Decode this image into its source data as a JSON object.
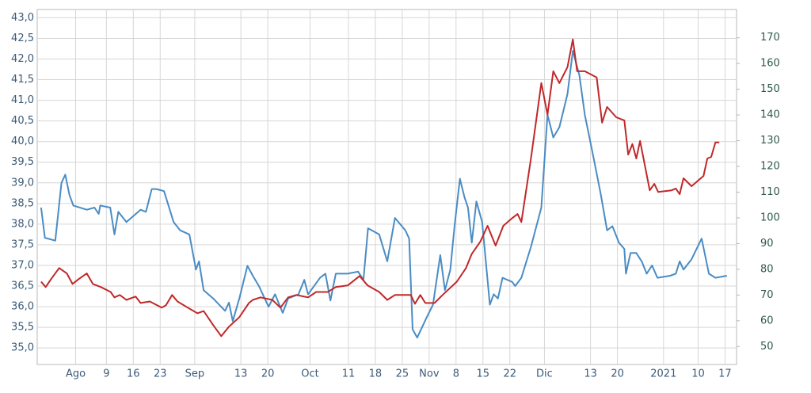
{
  "chart_data": {
    "type": "line",
    "xlim": [
      -10,
      172
    ],
    "xticks": [
      {
        "value": 0,
        "label": "Ago"
      },
      {
        "value": 8,
        "label": "9"
      },
      {
        "value": 15,
        "label": "16"
      },
      {
        "value": 22,
        "label": "23"
      },
      {
        "value": 31,
        "label": "Sep"
      },
      {
        "value": 43,
        "label": "13"
      },
      {
        "value": 50,
        "label": "20"
      },
      {
        "value": 61,
        "label": "Oct"
      },
      {
        "value": 71,
        "label": "11"
      },
      {
        "value": 78,
        "label": "18"
      },
      {
        "value": 85,
        "label": "25"
      },
      {
        "value": 92,
        "label": "Nov"
      },
      {
        "value": 99,
        "label": "8"
      },
      {
        "value": 106,
        "label": "15"
      },
      {
        "value": 113,
        "label": "22"
      },
      {
        "value": 122,
        "label": "Dic"
      },
      {
        "value": 134,
        "label": "13"
      },
      {
        "value": 141,
        "label": "20"
      },
      {
        "value": 153,
        "label": "2021"
      },
      {
        "value": 162,
        "label": "10"
      },
      {
        "value": 169,
        "label": "17"
      }
    ],
    "ylim": [
      34.6,
      43.2
    ],
    "yticks": [
      {
        "value": 35,
        "label": "35,0"
      },
      {
        "value": 35.5,
        "label": "35,5"
      },
      {
        "value": 36,
        "label": "36,0"
      },
      {
        "value": 36.5,
        "label": "36,5"
      },
      {
        "value": 37,
        "label": "37,0"
      },
      {
        "value": 37.5,
        "label": "37,5"
      },
      {
        "value": 38,
        "label": "38,0"
      },
      {
        "value": 38.5,
        "label": "38,5"
      },
      {
        "value": 39,
        "label": "39,0"
      },
      {
        "value": 39.5,
        "label": "39,5"
      },
      {
        "value": 40,
        "label": "40,0"
      },
      {
        "value": 40.5,
        "label": "40,5"
      },
      {
        "value": 41,
        "label": "41,0"
      },
      {
        "value": 41.5,
        "label": "41,5"
      },
      {
        "value": 42,
        "label": "42,0"
      },
      {
        "value": 42.5,
        "label": "42,5"
      },
      {
        "value": 43,
        "label": "43,0"
      }
    ],
    "y2lim": [
      43,
      181
    ],
    "y2ticks": [
      50,
      60,
      70,
      80,
      90,
      100,
      110,
      120,
      130,
      140,
      150,
      160,
      170
    ],
    "grid": true,
    "series": [
      {
        "color": "#4a8cc4",
        "axis": "y",
        "x": [
          -9,
          -8,
          -5.3,
          -3.7,
          -2.7,
          -1.6,
          -0.6,
          2.9,
          4.9,
          6,
          6.4,
          9,
          10.1,
          11.1,
          13.2,
          16.9,
          18.3,
          19.8,
          21,
          23,
          25.5,
          27.2,
          29.6,
          31.3,
          32.1,
          33.3,
          35.8,
          38.9,
          39.9,
          40.9,
          42.6,
          44.7,
          46.1,
          47.7,
          50.2,
          51.9,
          53.9,
          55.3,
          58,
          59.5,
          60.5,
          63.6,
          65,
          66.3,
          67.7,
          70.8,
          73.5,
          74.9,
          76.1,
          79,
          81.1,
          83.1,
          85.8,
          86.8,
          87.7,
          88.9,
          91.4,
          93,
          94.9,
          96.1,
          97.5,
          98.6,
          100,
          101.2,
          102.1,
          103.1,
          104.3,
          105.8,
          107.8,
          108.8,
          109.9,
          111.1,
          113.6,
          114.4,
          116,
          118.5,
          121.2,
          122.8,
          124.3,
          125.9,
          128,
          129.4,
          131.1,
          132.5,
          134.6,
          136.6,
          138.3,
          139.7,
          141.4,
          142.8,
          143.2,
          144.4,
          145.9,
          147.3,
          148.6,
          150,
          151.4,
          154.7,
          156.2,
          157.2,
          158.2,
          160.3,
          162.9,
          164.8,
          166.5,
          169.5
        ],
        "values": [
          38.4,
          37.67,
          37.6,
          39.0,
          39.2,
          38.7,
          38.45,
          38.35,
          38.4,
          38.25,
          38.45,
          38.4,
          37.75,
          38.3,
          38.05,
          38.35,
          38.3,
          38.85,
          38.85,
          38.8,
          38.05,
          37.85,
          37.75,
          36.9,
          37.1,
          36.4,
          36.2,
          35.9,
          36.1,
          35.65,
          36.2,
          36.99,
          36.75,
          36.5,
          36.0,
          36.3,
          35.85,
          36.2,
          36.3,
          36.65,
          36.3,
          36.7,
          36.8,
          36.15,
          36.8,
          36.8,
          36.85,
          36.65,
          37.9,
          37.75,
          37.1,
          38.15,
          37.85,
          37.65,
          35.45,
          35.25,
          35.75,
          36.05,
          37.25,
          36.4,
          36.9,
          37.95,
          39.1,
          38.65,
          38.4,
          37.55,
          38.55,
          38.05,
          36.05,
          36.3,
          36.2,
          36.7,
          36.6,
          36.5,
          36.7,
          37.45,
          38.4,
          40.65,
          40.1,
          40.35,
          41.15,
          42.2,
          41.6,
          40.65,
          39.7,
          38.75,
          37.85,
          37.95,
          37.55,
          37.4,
          36.8,
          37.3,
          37.3,
          37.1,
          36.8,
          37.0,
          36.7,
          36.75,
          36.8,
          37.1,
          36.9,
          37.15,
          37.65,
          36.8,
          36.7,
          36.75
        ]
      },
      {
        "color": "#c0282a",
        "axis": "y2",
        "x": [
          -9,
          -7.8,
          -6.4,
          -4.3,
          -2.3,
          -0.8,
          0.8,
          2.9,
          4.5,
          6.6,
          9.1,
          10.1,
          11.5,
          13.2,
          15.6,
          16.9,
          19.3,
          22.4,
          23.5,
          25.1,
          26.5,
          29.2,
          31.7,
          33.3,
          35.8,
          37.9,
          39.9,
          42.6,
          45.1,
          46.1,
          48.1,
          51.2,
          53.3,
          55.3,
          57.4,
          60.5,
          62.6,
          65.6,
          67.7,
          70.8,
          73.9,
          76,
          79,
          81.1,
          83.1,
          87.2,
          88.3,
          89.7,
          91,
          93.4,
          95.5,
          99.2,
          101.6,
          103.1,
          105.3,
          107.2,
          109.3,
          111.3,
          113.6,
          115,
          116,
          118.5,
          121.2,
          122.8,
          124.3,
          125.9,
          128,
          129.4,
          130.5,
          132.5,
          135.6,
          137,
          138.3,
          140.7,
          142.8,
          143.8,
          144.9,
          145.9,
          146.9,
          149.4,
          150.6,
          151.6,
          155.1,
          156.2,
          157.2,
          158.2,
          160.3,
          163.4,
          164.4,
          165.4,
          166.5,
          167.5
        ],
        "values": [
          75.2,
          73.1,
          76.2,
          80.5,
          78.4,
          74.3,
          76.2,
          78.4,
          74.3,
          73.1,
          71.2,
          69.1,
          70.0,
          68.1,
          69.4,
          66.9,
          67.5,
          65.1,
          66.0,
          70.0,
          67.5,
          65.1,
          62.9,
          63.8,
          58.3,
          54.0,
          57.7,
          61.4,
          66.9,
          68.1,
          69.1,
          68.1,
          65.1,
          69.1,
          70.0,
          69.1,
          71.2,
          71.2,
          73.1,
          73.7,
          77.4,
          73.7,
          71.2,
          68.1,
          70.0,
          70.0,
          66.6,
          70.0,
          66.9,
          66.9,
          70.0,
          75.2,
          80.5,
          86.0,
          90.7,
          96.9,
          89.2,
          96.9,
          99.9,
          101.5,
          98.4,
          123.1,
          152.4,
          140.1,
          157.0,
          152.4,
          158.6,
          169.4,
          157.0,
          157.0,
          154.6,
          137.0,
          143.1,
          139.1,
          137.9,
          124.6,
          128.7,
          123.1,
          129.9,
          110.7,
          113.2,
          110.1,
          110.7,
          111.4,
          109.2,
          115.4,
          112.3,
          116.3,
          123.1,
          123.7,
          129.3,
          129.3
        ]
      }
    ]
  }
}
